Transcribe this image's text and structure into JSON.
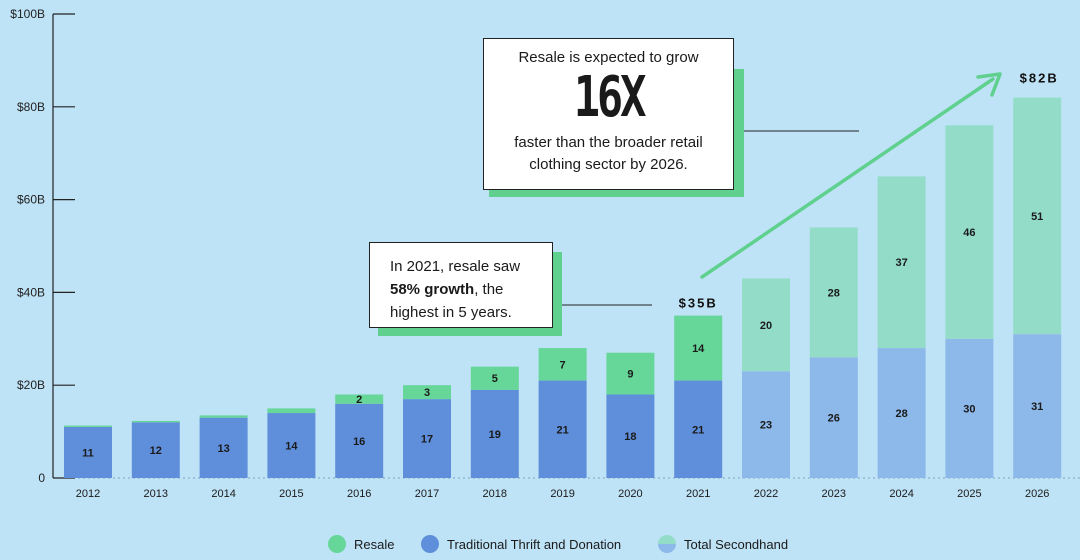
{
  "chart_data": {
    "type": "bar",
    "stacked": true,
    "categories": [
      "2012",
      "2013",
      "2014",
      "2015",
      "2016",
      "2017",
      "2018",
      "2019",
      "2020",
      "2021",
      "2022",
      "2023",
      "2024",
      "2025",
      "2026"
    ],
    "series": [
      {
        "name": "Traditional Thrift and Donation",
        "values": [
          11,
          12,
          13,
          14,
          16,
          17,
          19,
          21,
          18,
          21,
          23,
          26,
          28,
          30,
          31
        ]
      },
      {
        "name": "Resale",
        "values": [
          0.3,
          0.3,
          0.5,
          1,
          2,
          3,
          5,
          7,
          9,
          14,
          20,
          28,
          37,
          46,
          51
        ]
      }
    ],
    "segment_labels_bottom": [
      "11",
      "12",
      "13",
      "14",
      "16",
      "17",
      "19",
      "21",
      "18",
      "21",
      "23",
      "26",
      "28",
      "30",
      "31"
    ],
    "segment_labels_top": [
      "",
      "",
      "",
      "",
      "2",
      "3",
      "5",
      "7",
      "9",
      "14",
      "20",
      "28",
      "37",
      "46",
      "51"
    ],
    "projected_from_index": 10,
    "yticks": [
      "0",
      "$20B",
      "$40B",
      "$60B",
      "$80B",
      "$100B"
    ],
    "ylim": [
      0,
      100
    ],
    "annotations": {
      "total_2021": "$35B",
      "total_2026": "$82B"
    },
    "colors": {
      "resale": "#66d699",
      "thrift": "#5f8fdb",
      "resale_projected": "#93dcc8",
      "thrift_projected": "#8db8ea",
      "background": "#bfe3f6",
      "arrow": "#5fd08e"
    }
  },
  "callout_big": {
    "line1": "Resale is expected to grow",
    "big": "16X",
    "line2": "faster than the broader retail",
    "line3": "clothing sector by 2026."
  },
  "callout_small": {
    "line1": "In 2021, resale saw",
    "bold": "58% growth",
    "after_bold": ", the",
    "line3": "highest in 5 years."
  },
  "legend": {
    "resale": "Resale",
    "thrift": "Traditional Thrift and Donation",
    "total": "Total Secondhand"
  }
}
